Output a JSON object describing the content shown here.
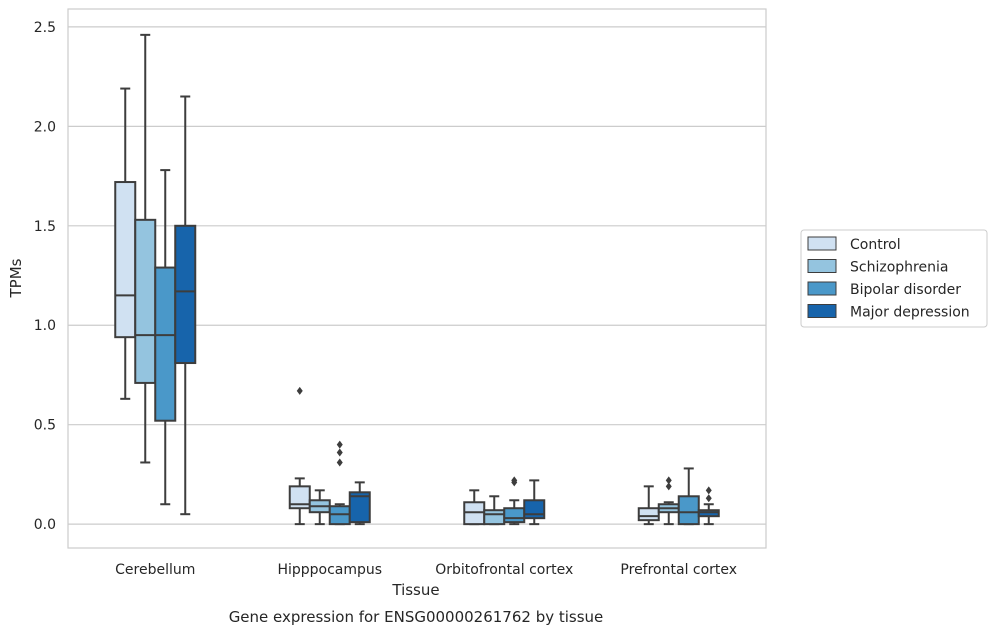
{
  "chart_data": {
    "type": "box",
    "title": "Gene expression for ENSG00000261762 by tissue",
    "xlabel": "Tissue",
    "ylabel": "TPMs",
    "ylim": [
      -0.12,
      2.59
    ],
    "yticks": [
      "0.0",
      "0.5",
      "1.0",
      "1.5",
      "2.0",
      "2.5"
    ],
    "grid": true,
    "legend_position": "right",
    "categories": [
      "Cerebellum",
      "Hipppocampus",
      "Orbitofrontal cortex",
      "Prefrontal cortex"
    ],
    "series": [
      {
        "name": "Control",
        "color": "#d0e1f2",
        "boxes": [
          {
            "whislo": 0.63,
            "q1": 0.94,
            "med": 1.15,
            "q3": 1.72,
            "whishi": 2.19,
            "fliers": []
          },
          {
            "whislo": 0.0,
            "q1": 0.08,
            "med": 0.1,
            "q3": 0.19,
            "whishi": 0.23,
            "fliers": [
              0.67
            ]
          },
          {
            "whislo": 0.0,
            "q1": 0.0,
            "med": 0.06,
            "q3": 0.11,
            "whishi": 0.17,
            "fliers": []
          },
          {
            "whislo": 0.0,
            "q1": 0.02,
            "med": 0.04,
            "q3": 0.08,
            "whishi": 0.19,
            "fliers": []
          }
        ]
      },
      {
        "name": "Schizophrenia",
        "color": "#94c4df",
        "boxes": [
          {
            "whislo": 0.31,
            "q1": 0.71,
            "med": 0.95,
            "q3": 1.53,
            "whishi": 2.46,
            "fliers": []
          },
          {
            "whislo": 0.0,
            "q1": 0.06,
            "med": 0.09,
            "q3": 0.12,
            "whishi": 0.17,
            "fliers": []
          },
          {
            "whislo": 0.0,
            "q1": 0.0,
            "med": 0.05,
            "q3": 0.07,
            "whishi": 0.14,
            "fliers": []
          },
          {
            "whislo": 0.0,
            "q1": 0.06,
            "med": 0.08,
            "q3": 0.1,
            "whishi": 0.11,
            "fliers": [
              0.19,
              0.22
            ]
          }
        ]
      },
      {
        "name": "Bipolar disorder",
        "color": "#4a98c9",
        "boxes": [
          {
            "whislo": 0.1,
            "q1": 0.52,
            "med": 0.95,
            "q3": 1.29,
            "whishi": 1.78,
            "fliers": []
          },
          {
            "whislo": 0.0,
            "q1": 0.0,
            "med": 0.05,
            "q3": 0.09,
            "whishi": 0.1,
            "fliers": [
              0.31,
              0.36,
              0.4
            ]
          },
          {
            "whislo": 0.0,
            "q1": 0.01,
            "med": 0.03,
            "q3": 0.08,
            "whishi": 0.12,
            "fliers": [
              0.21,
              0.22
            ]
          },
          {
            "whislo": 0.0,
            "q1": 0.0,
            "med": 0.06,
            "q3": 0.14,
            "whishi": 0.28,
            "fliers": []
          }
        ]
      },
      {
        "name": "Major depression",
        "color": "#1764ab",
        "boxes": [
          {
            "whislo": 0.05,
            "q1": 0.81,
            "med": 1.17,
            "q3": 1.5,
            "whishi": 2.15,
            "fliers": []
          },
          {
            "whislo": 0.0,
            "q1": 0.01,
            "med": 0.14,
            "q3": 0.16,
            "whishi": 0.21,
            "fliers": []
          },
          {
            "whislo": 0.0,
            "q1": 0.03,
            "med": 0.05,
            "q3": 0.12,
            "whishi": 0.22,
            "fliers": []
          },
          {
            "whislo": 0.0,
            "q1": 0.04,
            "med": 0.06,
            "q3": 0.07,
            "whishi": 0.1,
            "fliers": [
              0.13,
              0.17
            ]
          }
        ]
      }
    ]
  }
}
